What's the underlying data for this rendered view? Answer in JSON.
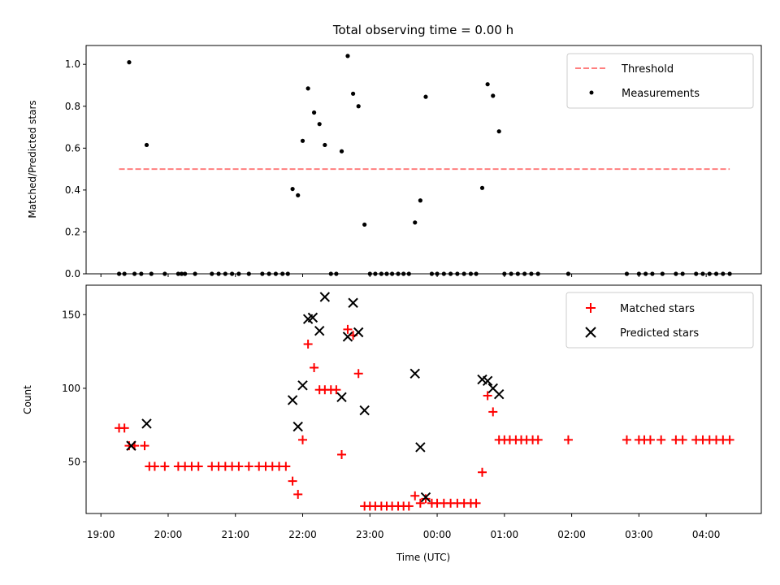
{
  "chart_data": {
    "type": "scatter",
    "title": "Total observing time = 0.00 h",
    "xlabel": "Time (UTC)",
    "x_tick_labels": [
      "19:00",
      "20:00",
      "21:00",
      "22:00",
      "23:00",
      "00:00",
      "01:00",
      "02:00",
      "03:00",
      "04:00"
    ],
    "x_tick_hours": [
      19,
      20,
      21,
      22,
      23,
      24,
      25,
      26,
      27,
      28
    ],
    "xlim_hours": [
      18.78,
      28.82
    ],
    "x_unit_note": "hours of day, 24 and above = next day",
    "top_panel": {
      "ylabel": "Matched/Predicted stars",
      "ylim": [
        0,
        1.09
      ],
      "y_ticks": [
        0.0,
        0.2,
        0.4,
        0.6,
        0.8,
        1.0
      ],
      "y_tick_labels": [
        "0.0",
        "0.2",
        "0.4",
        "0.6",
        "0.8",
        "1.0"
      ],
      "legend": {
        "position": "upper right",
        "entries": [
          "Threshold",
          "Measurements"
        ]
      },
      "threshold": {
        "name": "Threshold",
        "value": 0.5,
        "x_range": [
          19.27,
          28.35
        ],
        "color": "#ff7f7f"
      },
      "measurements": {
        "name": "Measurements",
        "color": "#000000",
        "points": [
          [
            19.27,
            0.0
          ],
          [
            19.35,
            0.0
          ],
          [
            19.42,
            1.01
          ],
          [
            19.5,
            0.0
          ],
          [
            19.6,
            0.0
          ],
          [
            19.68,
            0.615
          ],
          [
            19.75,
            0.0
          ],
          [
            19.95,
            0.0
          ],
          [
            20.15,
            0.0
          ],
          [
            20.2,
            0.0
          ],
          [
            20.25,
            0.0
          ],
          [
            20.4,
            0.0
          ],
          [
            20.65,
            0.0
          ],
          [
            20.75,
            0.0
          ],
          [
            20.85,
            0.0
          ],
          [
            20.95,
            0.0
          ],
          [
            21.05,
            0.0
          ],
          [
            21.2,
            0.0
          ],
          [
            21.4,
            0.0
          ],
          [
            21.5,
            0.0
          ],
          [
            21.6,
            0.0
          ],
          [
            21.7,
            0.0
          ],
          [
            21.78,
            0.0
          ],
          [
            21.85,
            0.405
          ],
          [
            21.93,
            0.375
          ],
          [
            22.0,
            0.635
          ],
          [
            22.08,
            0.885
          ],
          [
            22.17,
            0.77
          ],
          [
            22.25,
            0.715
          ],
          [
            22.33,
            0.615
          ],
          [
            22.42,
            0.0
          ],
          [
            22.5,
            0.0
          ],
          [
            22.58,
            0.585
          ],
          [
            22.67,
            1.04
          ],
          [
            22.75,
            0.86
          ],
          [
            22.83,
            0.8
          ],
          [
            22.92,
            0.235
          ],
          [
            23.0,
            0.0
          ],
          [
            23.08,
            0.0
          ],
          [
            23.17,
            0.0
          ],
          [
            23.25,
            0.0
          ],
          [
            23.33,
            0.0
          ],
          [
            23.42,
            0.0
          ],
          [
            23.5,
            0.0
          ],
          [
            23.58,
            0.0
          ],
          [
            23.67,
            0.245
          ],
          [
            23.75,
            0.35
          ],
          [
            23.83,
            0.845
          ],
          [
            23.92,
            0.0
          ],
          [
            24.0,
            0.0
          ],
          [
            24.1,
            0.0
          ],
          [
            24.2,
            0.0
          ],
          [
            24.3,
            0.0
          ],
          [
            24.4,
            0.0
          ],
          [
            24.5,
            0.0
          ],
          [
            24.58,
            0.0
          ],
          [
            24.67,
            0.41
          ],
          [
            24.75,
            0.905
          ],
          [
            24.83,
            0.85
          ],
          [
            24.92,
            0.68
          ],
          [
            25.0,
            0.0
          ],
          [
            25.1,
            0.0
          ],
          [
            25.2,
            0.0
          ],
          [
            25.3,
            0.0
          ],
          [
            25.4,
            0.0
          ],
          [
            25.5,
            0.0
          ],
          [
            25.95,
            0.0
          ],
          [
            26.82,
            0.0
          ],
          [
            27.0,
            0.0
          ],
          [
            27.1,
            0.0
          ],
          [
            27.2,
            0.0
          ],
          [
            27.35,
            0.0
          ],
          [
            27.55,
            0.0
          ],
          [
            27.65,
            0.0
          ],
          [
            27.85,
            0.0
          ],
          [
            27.95,
            0.0
          ],
          [
            28.05,
            0.0
          ],
          [
            28.15,
            0.0
          ],
          [
            28.25,
            0.0
          ],
          [
            28.35,
            0.0
          ]
        ]
      }
    },
    "bottom_panel": {
      "ylabel": "Count",
      "ylim": [
        15,
        170
      ],
      "y_ticks": [
        50,
        100,
        150
      ],
      "y_tick_labels": [
        "50",
        "100",
        "150"
      ],
      "legend": {
        "position": "upper right",
        "entries": [
          "Matched stars",
          "Predicted stars"
        ]
      },
      "series": [
        {
          "name": "Matched stars",
          "marker": "plus",
          "color": "#ff0000",
          "points": [
            [
              19.27,
              73
            ],
            [
              19.35,
              73
            ],
            [
              19.42,
              61
            ],
            [
              19.5,
              61
            ],
            [
              19.65,
              61
            ],
            [
              19.72,
              47
            ],
            [
              19.8,
              47
            ],
            [
              19.95,
              47
            ],
            [
              20.15,
              47
            ],
            [
              20.25,
              47
            ],
            [
              20.35,
              47
            ],
            [
              20.45,
              47
            ],
            [
              20.65,
              47
            ],
            [
              20.75,
              47
            ],
            [
              20.85,
              47
            ],
            [
              20.95,
              47
            ],
            [
              21.05,
              47
            ],
            [
              21.2,
              47
            ],
            [
              21.35,
              47
            ],
            [
              21.45,
              47
            ],
            [
              21.55,
              47
            ],
            [
              21.65,
              47
            ],
            [
              21.75,
              47
            ],
            [
              21.85,
              37
            ],
            [
              21.93,
              28
            ],
            [
              22.0,
              65
            ],
            [
              22.08,
              130
            ],
            [
              22.17,
              114
            ],
            [
              22.25,
              99
            ],
            [
              22.33,
              99
            ],
            [
              22.42,
              99
            ],
            [
              22.5,
              99
            ],
            [
              22.58,
              55
            ],
            [
              22.67,
              140
            ],
            [
              22.75,
              136
            ],
            [
              22.83,
              110
            ],
            [
              22.92,
              20
            ],
            [
              23.0,
              20
            ],
            [
              23.08,
              20
            ],
            [
              23.17,
              20
            ],
            [
              23.25,
              20
            ],
            [
              23.33,
              20
            ],
            [
              23.42,
              20
            ],
            [
              23.5,
              20
            ],
            [
              23.58,
              20
            ],
            [
              23.67,
              27
            ],
            [
              23.75,
              22
            ],
            [
              23.83,
              25
            ],
            [
              23.92,
              22
            ],
            [
              24.0,
              22
            ],
            [
              24.1,
              22
            ],
            [
              24.2,
              22
            ],
            [
              24.3,
              22
            ],
            [
              24.4,
              22
            ],
            [
              24.5,
              22
            ],
            [
              24.58,
              22
            ],
            [
              24.67,
              43
            ],
            [
              24.75,
              95
            ],
            [
              24.83,
              84
            ],
            [
              24.92,
              65
            ],
            [
              25.0,
              65
            ],
            [
              25.08,
              65
            ],
            [
              25.17,
              65
            ],
            [
              25.25,
              65
            ],
            [
              25.33,
              65
            ],
            [
              25.42,
              65
            ],
            [
              25.5,
              65
            ],
            [
              25.95,
              65
            ],
            [
              26.82,
              65
            ],
            [
              27.0,
              65
            ],
            [
              27.08,
              65
            ],
            [
              27.17,
              65
            ],
            [
              27.33,
              65
            ],
            [
              27.55,
              65
            ],
            [
              27.65,
              65
            ],
            [
              27.85,
              65
            ],
            [
              27.95,
              65
            ],
            [
              28.05,
              65
            ],
            [
              28.15,
              65
            ],
            [
              28.25,
              65
            ],
            [
              28.35,
              65
            ]
          ]
        },
        {
          "name": "Predicted stars",
          "marker": "x",
          "color": "#000000",
          "points": [
            [
              19.45,
              61
            ],
            [
              19.68,
              76
            ],
            [
              21.85,
              92
            ],
            [
              21.93,
              74
            ],
            [
              22.0,
              102
            ],
            [
              22.08,
              147
            ],
            [
              22.15,
              148
            ],
            [
              22.25,
              139
            ],
            [
              22.33,
              162
            ],
            [
              22.58,
              94
            ],
            [
              22.67,
              135
            ],
            [
              22.75,
              158
            ],
            [
              22.83,
              138
            ],
            [
              22.92,
              85
            ],
            [
              23.67,
              110
            ],
            [
              23.75,
              60
            ],
            [
              23.83,
              26
            ],
            [
              24.67,
              106
            ],
            [
              24.75,
              105
            ],
            [
              24.83,
              100
            ],
            [
              24.92,
              96
            ]
          ]
        }
      ]
    }
  }
}
